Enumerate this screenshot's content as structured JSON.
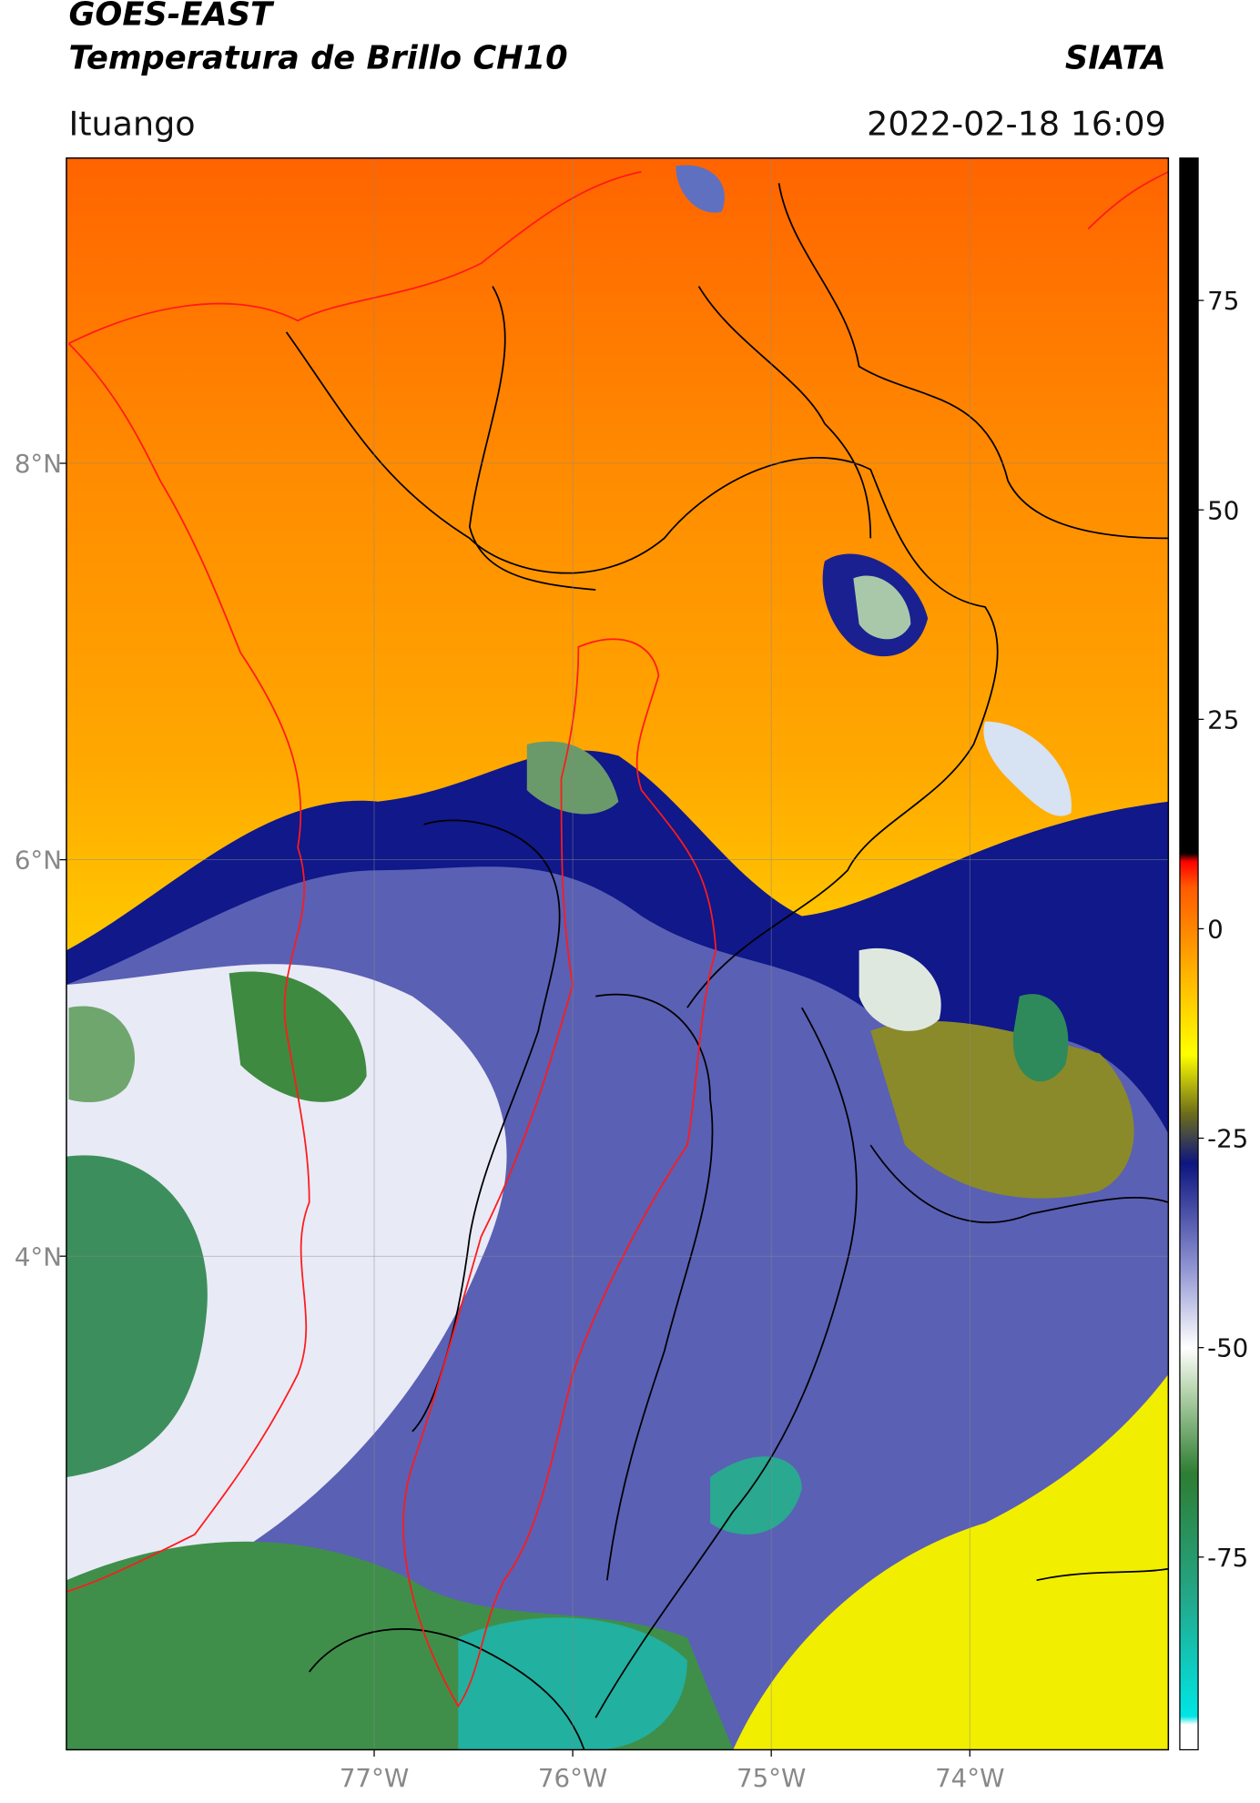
{
  "chart_data": {
    "type": "map",
    "title": "GOES-EAST",
    "subtitle": "Temperatura de Brillo CH10",
    "source": "SIATA",
    "location": "Ituango",
    "datetime": "2022-02-18 16:09",
    "xlim": [
      -78.55,
      -73.0
    ],
    "ylim": [
      1.51,
      9.54
    ],
    "xticks": [
      {
        "value": -77,
        "label": "77°W"
      },
      {
        "value": -76,
        "label": "76°W"
      },
      {
        "value": -75,
        "label": "75°W"
      },
      {
        "value": -74,
        "label": "74°W"
      }
    ],
    "yticks": [
      {
        "value": 4,
        "label": "4°N"
      },
      {
        "value": 6,
        "label": "6°N"
      },
      {
        "value": 8,
        "label": "8°N"
      }
    ],
    "grid": true,
    "colorbar": {
      "lim": [
        -98,
        92
      ],
      "ticks": [
        -75,
        -50,
        -25,
        0,
        25,
        50,
        75
      ],
      "stops": [
        {
          "value": -98,
          "color": "#ffffff"
        },
        {
          "value": -95,
          "color": "#ffffff"
        },
        {
          "value": -94,
          "color": "#00e5e5"
        },
        {
          "value": -80,
          "color": "#23a88a"
        },
        {
          "value": -65,
          "color": "#2e7d32"
        },
        {
          "value": -55,
          "color": "#b9d6b0"
        },
        {
          "value": -50,
          "color": "#ffffff"
        },
        {
          "value": -40,
          "color": "#8a8fd0"
        },
        {
          "value": -28,
          "color": "#0d1580"
        },
        {
          "value": -22,
          "color": "#6e6e1a"
        },
        {
          "value": -15,
          "color": "#ffff00"
        },
        {
          "value": -5,
          "color": "#ffb000"
        },
        {
          "value": 5,
          "color": "#ff5a00"
        },
        {
          "value": 8,
          "color": "#ff0000"
        },
        {
          "value": 9,
          "color": "#000000"
        },
        {
          "value": 92,
          "color": "#000000"
        }
      ]
    }
  }
}
